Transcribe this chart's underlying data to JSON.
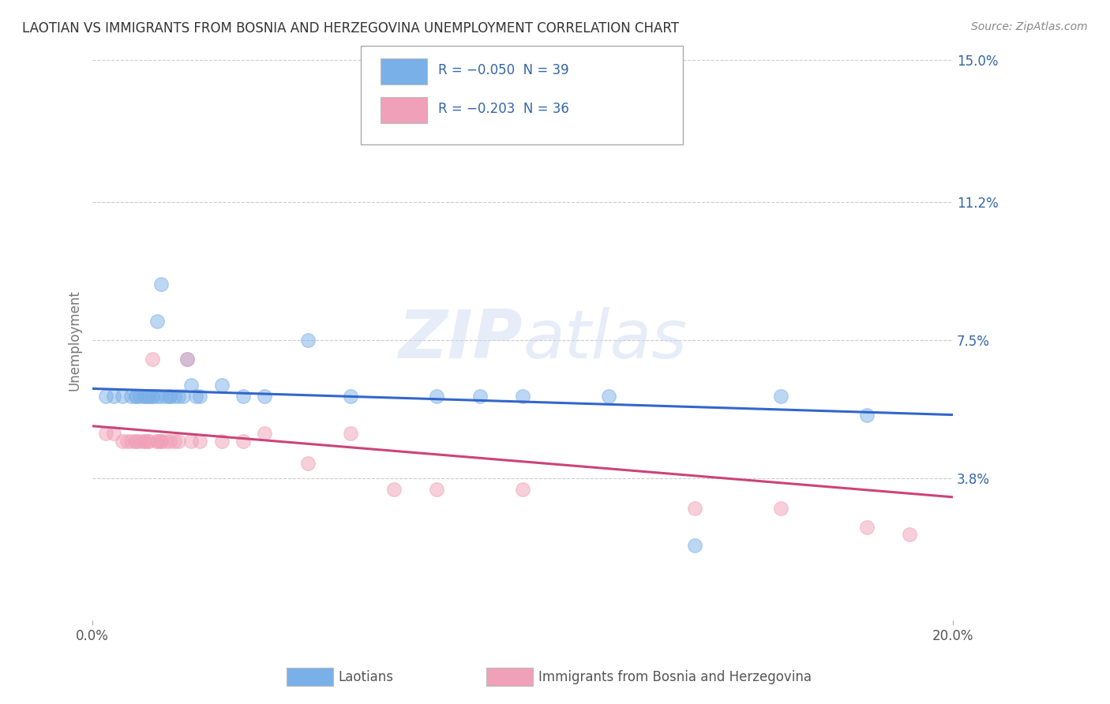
{
  "title": "LAOTIAN VS IMMIGRANTS FROM BOSNIA AND HERZEGOVINA UNEMPLOYMENT CORRELATION CHART",
  "source": "Source: ZipAtlas.com",
  "ylabel": "Unemployment",
  "xlim": [
    0.0,
    0.2
  ],
  "ylim": [
    0.0,
    0.15
  ],
  "y_tick_labels_right": [
    "3.8%",
    "7.5%",
    "11.2%",
    "15.0%"
  ],
  "y_tick_values_right": [
    0.038,
    0.075,
    0.112,
    0.15
  ],
  "watermark": "ZIPatlas",
  "series1_color": "#7ab0e8",
  "series2_color": "#f0a0b8",
  "series1_line_color": "#3366cc",
  "series2_line_color": "#cc4477",
  "background_color": "#ffffff",
  "grid_color": "#cccccc",
  "title_color": "#333333",
  "axis_label_color": "#3366aa",
  "text_color_dark": "#222222",
  "laotian_x": [
    0.003,
    0.005,
    0.007,
    0.009,
    0.01,
    0.01,
    0.011,
    0.012,
    0.012,
    0.013,
    0.013,
    0.014,
    0.014,
    0.015,
    0.015,
    0.016,
    0.016,
    0.017,
    0.018,
    0.018,
    0.019,
    0.02,
    0.021,
    0.022,
    0.023,
    0.024,
    0.025,
    0.03,
    0.035,
    0.04,
    0.05,
    0.06,
    0.08,
    0.09,
    0.1,
    0.12,
    0.14,
    0.16,
    0.18
  ],
  "laotian_y": [
    0.06,
    0.06,
    0.06,
    0.06,
    0.06,
    0.06,
    0.06,
    0.06,
    0.06,
    0.06,
    0.06,
    0.06,
    0.06,
    0.06,
    0.08,
    0.06,
    0.09,
    0.06,
    0.06,
    0.06,
    0.06,
    0.06,
    0.06,
    0.07,
    0.063,
    0.06,
    0.06,
    0.063,
    0.06,
    0.06,
    0.075,
    0.06,
    0.06,
    0.06,
    0.06,
    0.06,
    0.02,
    0.06,
    0.055
  ],
  "bosnia_x": [
    0.003,
    0.005,
    0.007,
    0.008,
    0.009,
    0.01,
    0.01,
    0.011,
    0.012,
    0.012,
    0.013,
    0.013,
    0.014,
    0.015,
    0.015,
    0.016,
    0.016,
    0.017,
    0.018,
    0.019,
    0.02,
    0.022,
    0.023,
    0.025,
    0.03,
    0.035,
    0.04,
    0.05,
    0.06,
    0.07,
    0.08,
    0.1,
    0.14,
    0.16,
    0.18,
    0.19
  ],
  "bosnia_y": [
    0.05,
    0.05,
    0.048,
    0.048,
    0.048,
    0.048,
    0.048,
    0.048,
    0.048,
    0.048,
    0.048,
    0.048,
    0.07,
    0.048,
    0.048,
    0.048,
    0.048,
    0.048,
    0.048,
    0.048,
    0.048,
    0.07,
    0.048,
    0.048,
    0.048,
    0.048,
    0.05,
    0.042,
    0.05,
    0.035,
    0.035,
    0.035,
    0.03,
    0.03,
    0.025,
    0.023
  ],
  "lao_line_x0": 0.0,
  "lao_line_x1": 0.2,
  "lao_line_y0": 0.062,
  "lao_line_y1": 0.055,
  "bos_line_x0": 0.0,
  "bos_line_x1": 0.2,
  "bos_line_y0": 0.052,
  "bos_line_y1": 0.033
}
